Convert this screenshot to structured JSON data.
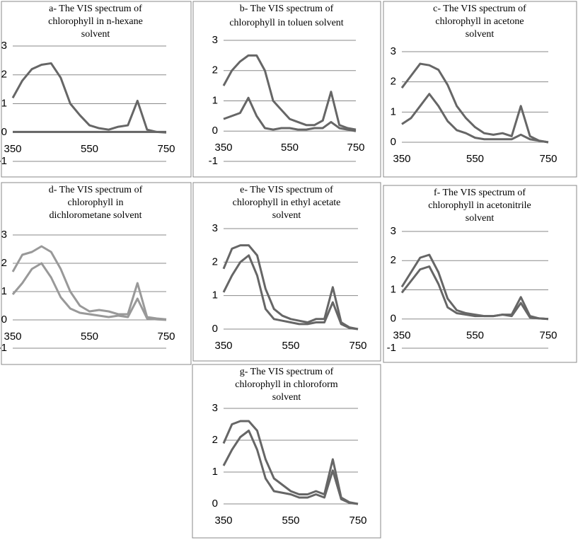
{
  "chart_data": [
    {
      "type": "line",
      "title": [
        "a- The VIS spectrum of",
        "chlorophyll in n-hexane",
        "solvent"
      ],
      "x": [
        350,
        375,
        400,
        425,
        450,
        475,
        500,
        525,
        550,
        575,
        600,
        625,
        650,
        675,
        700,
        725,
        750
      ],
      "xlim": [
        350,
        750
      ],
      "xticks": [
        350,
        550,
        750
      ],
      "ylim": [
        -1,
        3
      ],
      "yticks": [
        -1,
        0,
        1,
        2,
        3
      ],
      "grid": true,
      "series": [
        {
          "color": "#666666",
          "values": [
            1.2,
            1.8,
            2.2,
            2.35,
            2.4,
            1.9,
            1.0,
            0.6,
            0.25,
            0.15,
            0.1,
            0.2,
            0.25,
            1.1,
            0.1,
            0.02,
            0
          ]
        },
        {
          "color": "#666666",
          "values": [
            0.02,
            0.02,
            0.02,
            0.02,
            0.02,
            0.02,
            0.02,
            0.02,
            0.02,
            0.02,
            0.02,
            0.02,
            0.02,
            0.02,
            0.02,
            0.02,
            0.02
          ]
        }
      ]
    },
    {
      "type": "line",
      "title": [
        "b- The VIS spectrum of",
        "chlorophyll in toluen solvent"
      ],
      "x": [
        350,
        375,
        400,
        425,
        450,
        475,
        500,
        525,
        550,
        575,
        600,
        625,
        650,
        675,
        700,
        725,
        750
      ],
      "xlim": [
        350,
        750
      ],
      "xticks": [
        350,
        550,
        750
      ],
      "ylim": [
        -1,
        3
      ],
      "yticks": [
        -1,
        0,
        1,
        2,
        3
      ],
      "grid": true,
      "series": [
        {
          "color": "#666666",
          "values": [
            1.5,
            2.0,
            2.3,
            2.5,
            2.5,
            2.0,
            1.0,
            0.7,
            0.4,
            0.3,
            0.2,
            0.2,
            0.35,
            1.3,
            0.2,
            0.1,
            0.05
          ]
        },
        {
          "color": "#666666",
          "values": [
            0.4,
            0.5,
            0.6,
            1.1,
            0.5,
            0.1,
            0.05,
            0.1,
            0.1,
            0.05,
            0.05,
            0.1,
            0.1,
            0.3,
            0.1,
            0.05,
            0
          ]
        }
      ]
    },
    {
      "type": "line",
      "title": [
        "c- The VIS spectrum of",
        "chlorophyll in acetone",
        "solvent"
      ],
      "x": [
        350,
        375,
        400,
        425,
        450,
        475,
        500,
        525,
        550,
        575,
        600,
        625,
        650,
        675,
        700,
        725,
        750
      ],
      "xlim": [
        350,
        750
      ],
      "xticks": [
        350,
        550,
        750
      ],
      "ylim": [
        0,
        3
      ],
      "yticks": [
        0,
        1,
        2,
        3
      ],
      "grid": true,
      "series": [
        {
          "color": "#666666",
          "values": [
            1.8,
            2.2,
            2.6,
            2.55,
            2.4,
            1.9,
            1.2,
            0.8,
            0.5,
            0.3,
            0.25,
            0.3,
            0.2,
            1.2,
            0.2,
            0.05,
            0
          ]
        },
        {
          "color": "#666666",
          "values": [
            0.6,
            0.8,
            1.2,
            1.6,
            1.2,
            0.7,
            0.4,
            0.3,
            0.15,
            0.1,
            0.1,
            0.1,
            0.1,
            0.25,
            0.1,
            0.05,
            0
          ]
        }
      ]
    },
    {
      "type": "line",
      "title": [
        "d- The VIS spectrum of",
        "chlorophyll in",
        "dichlorometane solvent"
      ],
      "x": [
        350,
        375,
        400,
        425,
        450,
        475,
        500,
        525,
        550,
        575,
        600,
        625,
        650,
        675,
        700,
        725,
        750
      ],
      "xlim": [
        350,
        750
      ],
      "xticks": [
        350,
        550,
        750
      ],
      "ylim": [
        -1,
        3
      ],
      "yticks": [
        -1,
        0,
        1,
        2,
        3
      ],
      "grid": true,
      "series": [
        {
          "color": "#999999",
          "values": [
            1.7,
            2.3,
            2.4,
            2.6,
            2.4,
            1.8,
            1.0,
            0.5,
            0.3,
            0.35,
            0.3,
            0.2,
            0.2,
            1.3,
            0.1,
            0.05,
            0.02
          ]
        },
        {
          "color": "#999999",
          "values": [
            0.9,
            1.3,
            1.8,
            2.0,
            1.5,
            0.8,
            0.4,
            0.25,
            0.2,
            0.15,
            0.1,
            0.15,
            0.1,
            0.75,
            0.05,
            0.02,
            0
          ]
        }
      ]
    },
    {
      "type": "line",
      "title": [
        "e- The VIS spectrum of",
        "chlorophyll in ethyl acetate",
        "solvent"
      ],
      "x": [
        350,
        375,
        400,
        425,
        450,
        475,
        500,
        525,
        550,
        575,
        600,
        625,
        650,
        675,
        700,
        725,
        750
      ],
      "xlim": [
        350,
        750
      ],
      "xticks": [
        350,
        550,
        750
      ],
      "ylim": [
        0,
        3
      ],
      "yticks": [
        0,
        1,
        2,
        3
      ],
      "grid": true,
      "series": [
        {
          "color": "#666666",
          "values": [
            1.8,
            2.4,
            2.5,
            2.5,
            2.2,
            1.2,
            0.6,
            0.4,
            0.3,
            0.25,
            0.2,
            0.3,
            0.3,
            1.25,
            0.2,
            0.05,
            0
          ]
        },
        {
          "color": "#666666",
          "values": [
            1.1,
            1.6,
            2.0,
            2.2,
            1.6,
            0.6,
            0.3,
            0.25,
            0.2,
            0.15,
            0.15,
            0.2,
            0.2,
            0.8,
            0.15,
            0.03,
            0
          ]
        }
      ]
    },
    {
      "type": "line",
      "title": [
        "f- The VIS spectrum of",
        "chlorophyll in acetonitrile",
        "solvent"
      ],
      "x": [
        350,
        375,
        400,
        425,
        450,
        475,
        500,
        525,
        550,
        575,
        600,
        625,
        650,
        675,
        700,
        725,
        750
      ],
      "xlim": [
        350,
        750
      ],
      "xticks": [
        350,
        550,
        750
      ],
      "ylim": [
        -1,
        3
      ],
      "yticks": [
        -1,
        0,
        1,
        2,
        3
      ],
      "grid": true,
      "series": [
        {
          "color": "#666666",
          "values": [
            1.1,
            1.6,
            2.1,
            2.2,
            1.6,
            0.7,
            0.3,
            0.2,
            0.15,
            0.1,
            0.1,
            0.15,
            0.15,
            0.75,
            0.1,
            0.02,
            0
          ]
        },
        {
          "color": "#666666",
          "values": [
            0.9,
            1.3,
            1.7,
            1.8,
            1.2,
            0.4,
            0.2,
            0.15,
            0.1,
            0.1,
            0.1,
            0.15,
            0.1,
            0.55,
            0.05,
            0.02,
            0
          ]
        }
      ]
    },
    {
      "type": "line",
      "title": [
        "g- The VIS spectrum of",
        "chlorophyll in chloroform",
        "solvent"
      ],
      "x": [
        350,
        375,
        400,
        425,
        450,
        475,
        500,
        525,
        550,
        575,
        600,
        625,
        650,
        675,
        700,
        725,
        750
      ],
      "xlim": [
        350,
        750
      ],
      "xticks": [
        350,
        550,
        750
      ],
      "ylim": [
        0,
        3
      ],
      "yticks": [
        0,
        1,
        2,
        3
      ],
      "grid": true,
      "series": [
        {
          "color": "#666666",
          "values": [
            1.9,
            2.5,
            2.6,
            2.6,
            2.3,
            1.4,
            0.8,
            0.6,
            0.4,
            0.3,
            0.3,
            0.4,
            0.3,
            1.4,
            0.2,
            0.05,
            0
          ]
        },
        {
          "color": "#666666",
          "values": [
            1.2,
            1.7,
            2.1,
            2.3,
            1.7,
            0.8,
            0.4,
            0.35,
            0.3,
            0.2,
            0.2,
            0.3,
            0.2,
            1.05,
            0.15,
            0.03,
            0
          ]
        }
      ]
    }
  ]
}
